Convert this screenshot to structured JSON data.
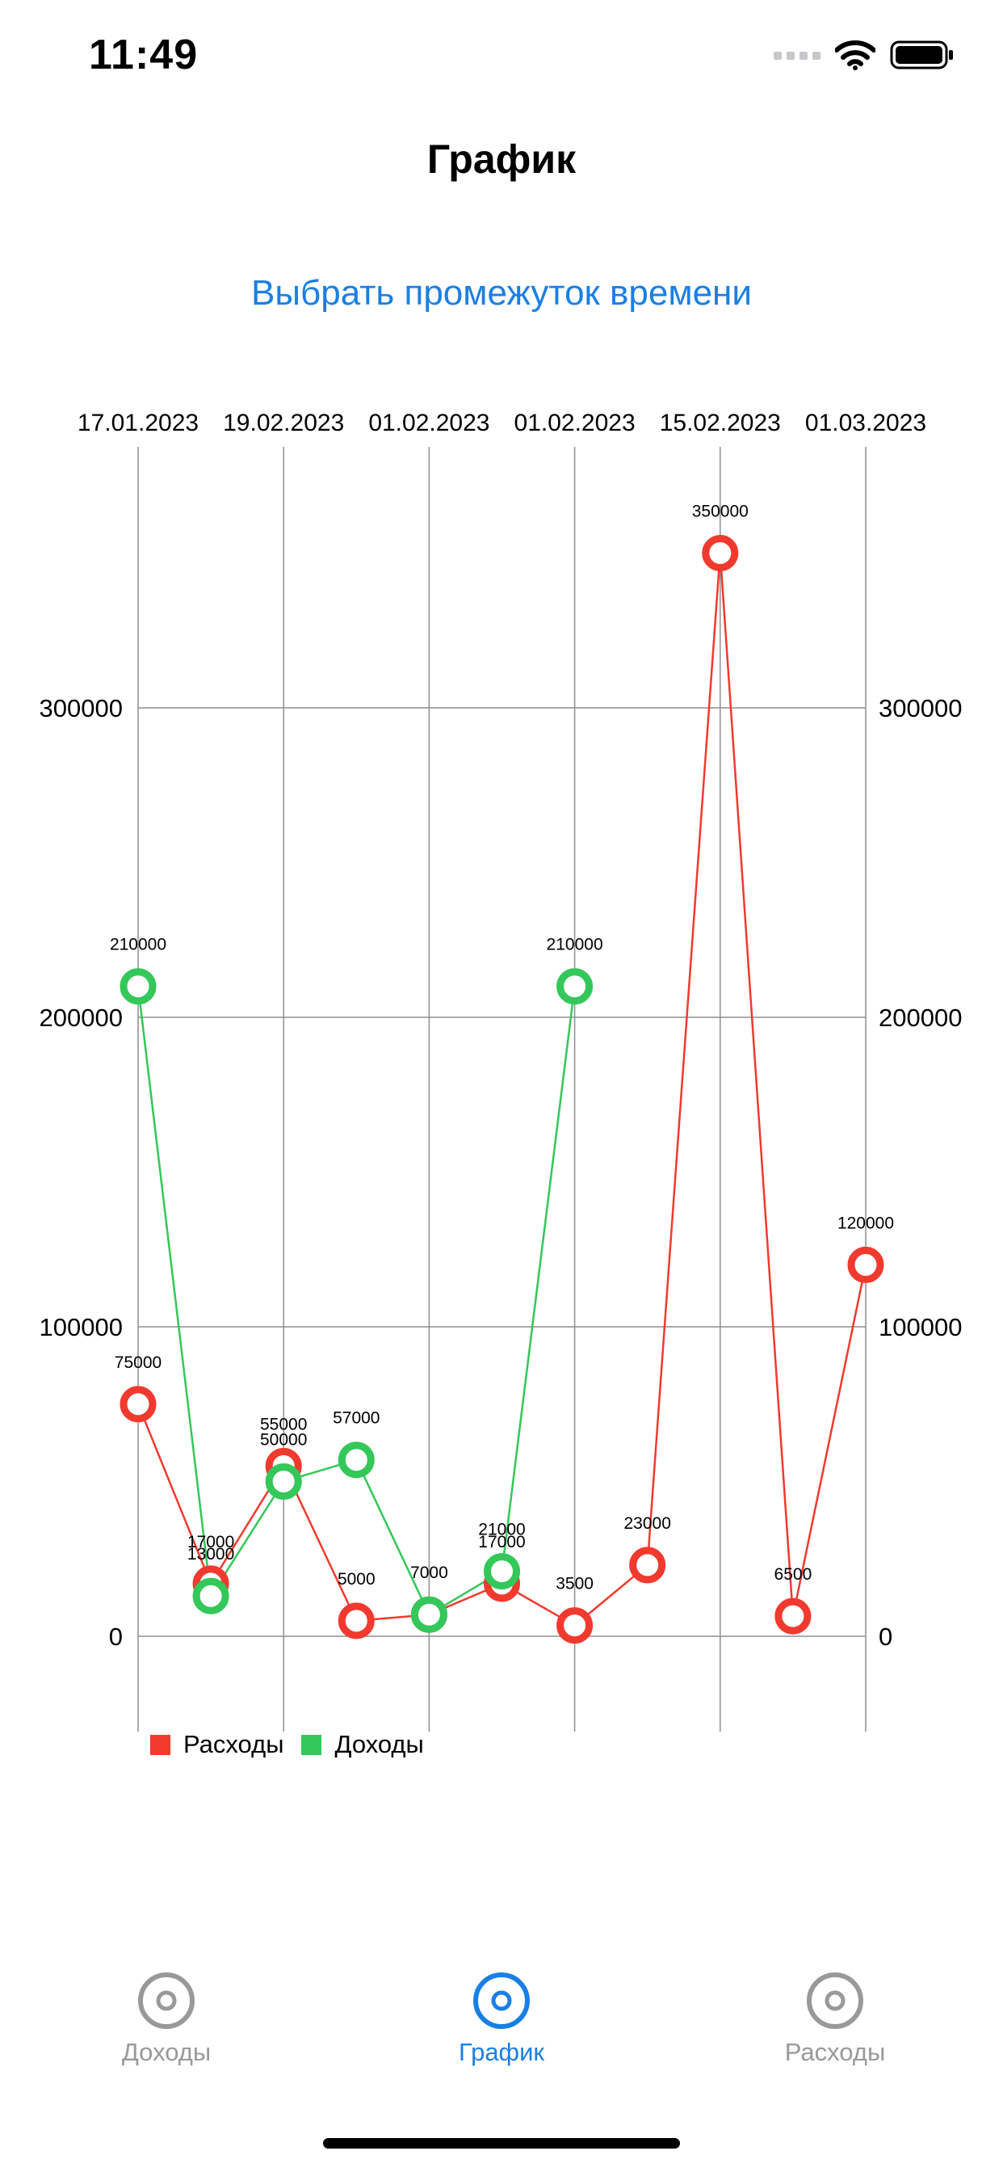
{
  "status_bar": {
    "time": "11:49"
  },
  "nav": {
    "title": "График"
  },
  "range_button": {
    "label": "Выбрать промежуток времени"
  },
  "colors": {
    "expense": "#f03a2e",
    "income": "#34c759",
    "accent": "#1a7fe5",
    "inactive": "#999999"
  },
  "chart_data": {
    "type": "line",
    "x": [
      "17.01.2023",
      "",
      "19.02.2023",
      "",
      "01.02.2023",
      "",
      "01.02.2023",
      "",
      "15.02.2023",
      "",
      "01.03.2023"
    ],
    "x_tick_labels": [
      "17.01.2023",
      "19.02.2023",
      "01.02.2023",
      "01.02.2023",
      "15.02.2023",
      "01.03.2023"
    ],
    "y_tick_labels": [
      "0",
      "100000",
      "200000",
      "300000"
    ],
    "ylim": [
      -30000,
      385000
    ],
    "grid": true,
    "legend_position": "bottom-left",
    "series": [
      {
        "name": "Расходы",
        "points": [
          {
            "x": 0,
            "value": 75000,
            "label": "75000"
          },
          {
            "x": 1,
            "value": 17000,
            "label": "17000"
          },
          {
            "x": 2,
            "value": 55000,
            "label": "55000"
          },
          {
            "x": 3,
            "value": 5000,
            "label": "5000"
          },
          {
            "x": 4,
            "value": 7000,
            "label": ""
          },
          {
            "x": 5,
            "value": 17000,
            "label": "17000"
          },
          {
            "x": 6,
            "value": 3500,
            "label": "3500"
          },
          {
            "x": 7,
            "value": 23000,
            "label": "23000"
          },
          {
            "x": 8,
            "value": 350000,
            "label": "350000"
          },
          {
            "x": 9,
            "value": 6500,
            "label": "6500"
          },
          {
            "x": 10,
            "value": 120000,
            "label": "120000"
          }
        ]
      },
      {
        "name": "Доходы",
        "points": [
          {
            "x": 0,
            "value": 210000,
            "label": "210000"
          },
          {
            "x": 1,
            "value": 13000,
            "label": "13000"
          },
          {
            "x": 2,
            "value": 50000,
            "label": "50000"
          },
          {
            "x": 3,
            "value": 57000,
            "label": "57000"
          },
          {
            "x": 4,
            "value": 7000,
            "label": "7000"
          },
          {
            "x": 5,
            "value": 21000,
            "label": "21000"
          },
          {
            "x": 6,
            "value": 210000,
            "label": "210000"
          }
        ]
      }
    ]
  },
  "tabs": [
    {
      "label": "Доходы",
      "active": false
    },
    {
      "label": "График",
      "active": true
    },
    {
      "label": "Расходы",
      "active": false
    }
  ]
}
